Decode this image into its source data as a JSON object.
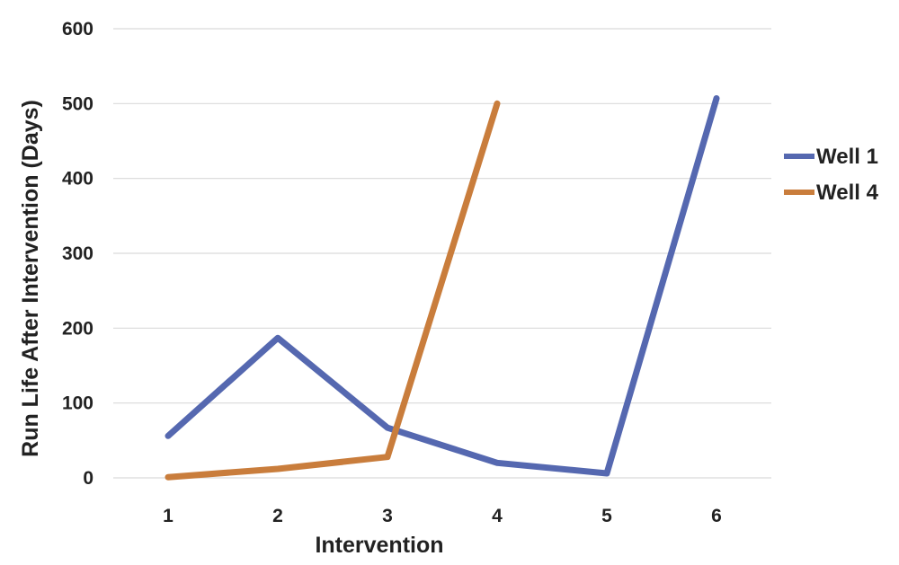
{
  "chart_data": {
    "type": "line",
    "title": "",
    "xlabel": "Intervention",
    "ylabel": "Run Life After Intervention (Days)",
    "categories": [
      "1",
      "2",
      "3",
      "4",
      "5",
      "6"
    ],
    "ylim": [
      0,
      600
    ],
    "yticks": [
      "0",
      "100",
      "200",
      "300",
      "400",
      "500",
      "600"
    ],
    "grid": true,
    "legend_position": "right",
    "series": [
      {
        "name": "Well 1",
        "color": "#5568b0",
        "values": [
          56,
          187,
          67,
          20,
          6,
          507
        ]
      },
      {
        "name": "Well 4",
        "color": "#c97d3c",
        "values": [
          1,
          12,
          28,
          500,
          null,
          null
        ]
      }
    ]
  }
}
